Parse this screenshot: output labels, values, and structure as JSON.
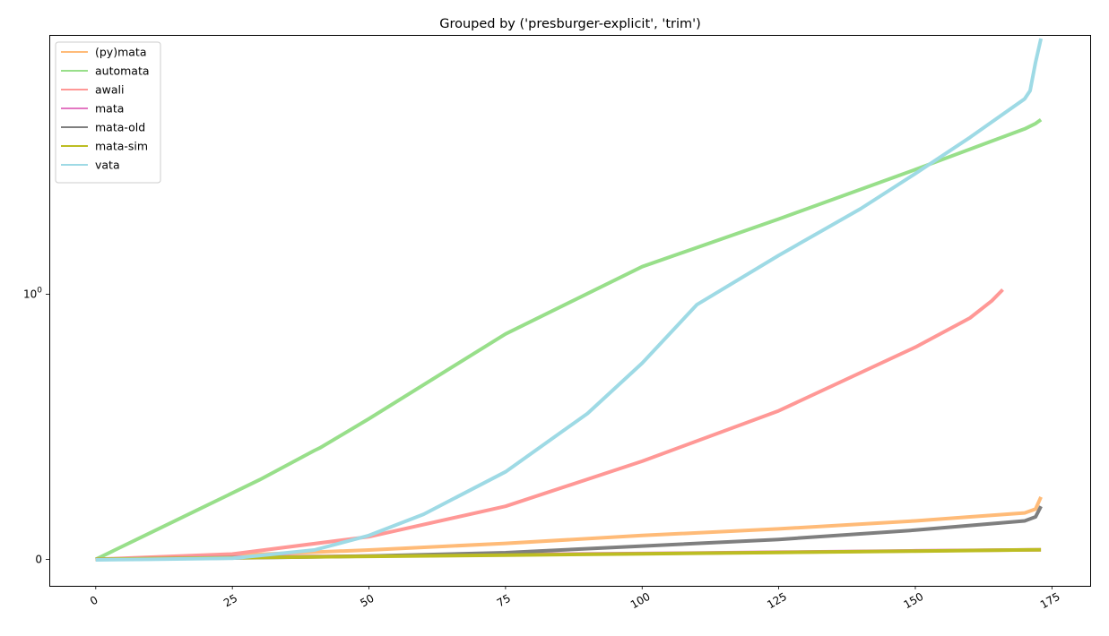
{
  "chart_data": {
    "type": "line",
    "title": "Grouped by ('presburger-explicit', 'trim')",
    "xlabel": "",
    "ylabel": "",
    "xlim": [
      -8.5,
      182
    ],
    "x_ticks": [
      0,
      25,
      50,
      75,
      100,
      125,
      150,
      175
    ],
    "x_tick_labels": [
      "0",
      "25",
      "50",
      "75",
      "100",
      "125",
      "150",
      "175"
    ],
    "y_scale": "symlog",
    "y_linthresh": 1,
    "ylim": [
      -0.1,
      9.5
    ],
    "y_ticks": [
      0,
      1
    ],
    "y_tick_labels": [
      "0",
      "10^0"
    ],
    "grid": false,
    "legend_position": "top-left",
    "series": [
      {
        "name": "(py)mata",
        "color": "#ffbb78",
        "x": [
          0,
          25,
          50,
          75,
          100,
          125,
          150,
          160,
          170,
          172,
          173
        ],
        "y": [
          0,
          0.015,
          0.035,
          0.06,
          0.09,
          0.115,
          0.145,
          0.16,
          0.175,
          0.19,
          0.235
        ]
      },
      {
        "name": "automata",
        "color": "#98df8a",
        "x": [
          0,
          10,
          20,
          30,
          40,
          41,
          50,
          75,
          100,
          125,
          150,
          170,
          172,
          173
        ],
        "y": [
          0,
          0.1,
          0.2,
          0.3,
          0.41,
          0.42,
          0.53,
          0.85,
          1.27,
          1.92,
          2.95,
          4.2,
          4.4,
          4.55
        ]
      },
      {
        "name": "awali",
        "color": "#ff9896",
        "x": [
          0,
          25,
          50,
          75,
          100,
          125,
          150,
          160,
          164,
          166
        ],
        "y": [
          0,
          0.02,
          0.085,
          0.2,
          0.37,
          0.56,
          0.8,
          0.91,
          0.975,
          1.04
        ]
      },
      {
        "name": "mata",
        "color": "#e377c2",
        "x": [
          0,
          25,
          50,
          75,
          100,
          125,
          150,
          173
        ],
        "y": [
          0,
          0.008,
          0.012,
          0.018,
          0.022,
          0.027,
          0.032,
          0.036
        ]
      },
      {
        "name": "mata-old",
        "color": "#7f7f7f",
        "x": [
          0,
          25,
          50,
          75,
          100,
          125,
          150,
          170,
          172,
          173
        ],
        "y": [
          0,
          0.005,
          0.012,
          0.025,
          0.05,
          0.075,
          0.11,
          0.145,
          0.16,
          0.2
        ]
      },
      {
        "name": "mata-sim",
        "color": "#bcbd22",
        "x": [
          0,
          25,
          50,
          75,
          100,
          125,
          150,
          173
        ],
        "y": [
          0,
          0.006,
          0.011,
          0.016,
          0.021,
          0.026,
          0.031,
          0.036
        ]
      },
      {
        "name": "vata",
        "color": "#9edae5",
        "x": [
          0,
          10,
          25,
          40,
          50,
          60,
          75,
          90,
          100,
          110,
          125,
          140,
          150,
          160,
          170,
          171,
          172,
          173
        ],
        "y": [
          -0.002,
          0,
          0.004,
          0.035,
          0.09,
          0.17,
          0.33,
          0.55,
          0.74,
          0.96,
          1.4,
          2.1,
          2.85,
          3.9,
          5.45,
          5.85,
          7.5,
          9.2
        ]
      }
    ]
  }
}
